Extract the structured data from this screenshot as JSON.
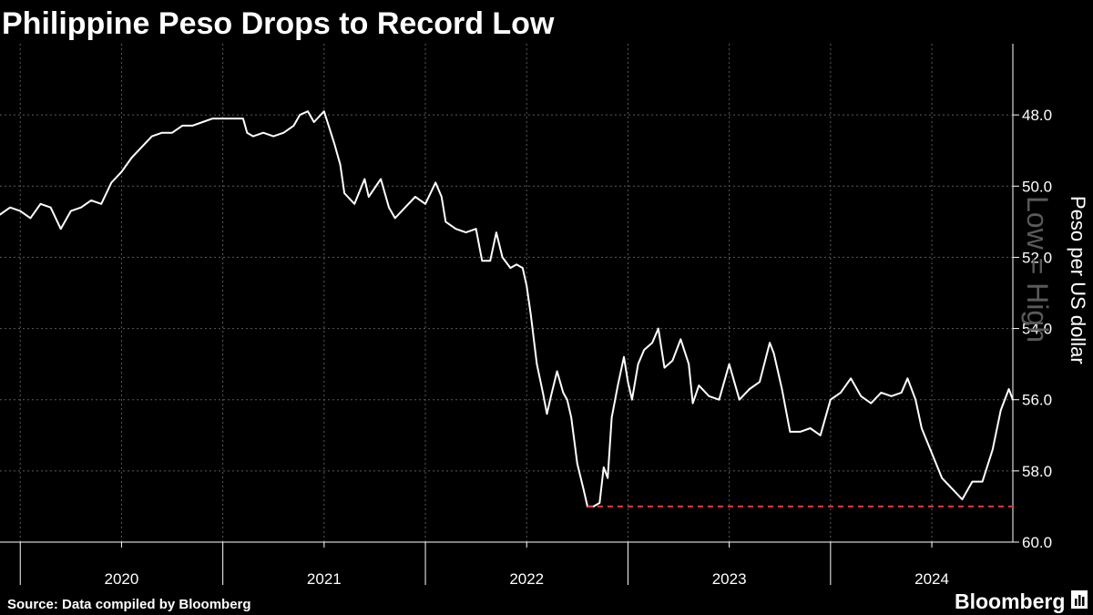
{
  "chart_data": {
    "type": "line",
    "title": "Philippine Peso Drops to Record Low",
    "ylabel": "Peso per US dollar",
    "ylabel_secondary": "Low = High",
    "ylim": [
      60.0,
      46.0
    ],
    "y_inverted": true,
    "yticks": [
      "48.0",
      "50.0",
      "52.0",
      "54.0",
      "56.0",
      "58.0",
      "60.0"
    ],
    "xlim": [
      2019.9,
      2024.9
    ],
    "xticks": [
      {
        "label": "2020",
        "value": 2020.5
      },
      {
        "label": "2021",
        "value": 2021.5
      },
      {
        "label": "2022",
        "value": 2022.5
      },
      {
        "label": "2023",
        "value": 2023.5
      },
      {
        "label": "2024",
        "value": 2024.5
      }
    ],
    "year_boundaries": [
      2020.0,
      2021.0,
      2022.0,
      2023.0,
      2024.0
    ],
    "grid_x": [
      2020.0,
      2020.5,
      2021.0,
      2021.5,
      2022.0,
      2022.5,
      2023.0,
      2023.5,
      2024.0,
      2024.5
    ],
    "series": [
      {
        "name": "Peso per US dollar",
        "color": "#ffffff",
        "points": [
          [
            2019.9,
            50.8
          ],
          [
            2019.95,
            50.6
          ],
          [
            2020.0,
            50.7
          ],
          [
            2020.05,
            50.9
          ],
          [
            2020.1,
            50.5
          ],
          [
            2020.15,
            50.6
          ],
          [
            2020.2,
            51.2
          ],
          [
            2020.25,
            50.7
          ],
          [
            2020.3,
            50.6
          ],
          [
            2020.35,
            50.4
          ],
          [
            2020.4,
            50.5
          ],
          [
            2020.45,
            49.9
          ],
          [
            2020.5,
            49.6
          ],
          [
            2020.55,
            49.2
          ],
          [
            2020.6,
            48.9
          ],
          [
            2020.65,
            48.6
          ],
          [
            2020.7,
            48.5
          ],
          [
            2020.75,
            48.5
          ],
          [
            2020.8,
            48.3
          ],
          [
            2020.85,
            48.3
          ],
          [
            2020.9,
            48.2
          ],
          [
            2020.95,
            48.1
          ],
          [
            2021.0,
            48.1
          ],
          [
            2021.05,
            48.1
          ],
          [
            2021.1,
            48.1
          ],
          [
            2021.12,
            48.5
          ],
          [
            2021.15,
            48.6
          ],
          [
            2021.2,
            48.5
          ],
          [
            2021.25,
            48.6
          ],
          [
            2021.3,
            48.5
          ],
          [
            2021.35,
            48.3
          ],
          [
            2021.38,
            48.0
          ],
          [
            2021.42,
            47.9
          ],
          [
            2021.45,
            48.2
          ],
          [
            2021.5,
            47.9
          ],
          [
            2021.55,
            48.8
          ],
          [
            2021.58,
            49.4
          ],
          [
            2021.6,
            50.2
          ],
          [
            2021.65,
            50.5
          ],
          [
            2021.7,
            49.8
          ],
          [
            2021.72,
            50.3
          ],
          [
            2021.78,
            49.8
          ],
          [
            2021.82,
            50.6
          ],
          [
            2021.85,
            50.9
          ],
          [
            2021.9,
            50.6
          ],
          [
            2021.95,
            50.3
          ],
          [
            2022.0,
            50.5
          ],
          [
            2022.05,
            49.9
          ],
          [
            2022.08,
            50.3
          ],
          [
            2022.1,
            51.0
          ],
          [
            2022.15,
            51.2
          ],
          [
            2022.2,
            51.3
          ],
          [
            2022.25,
            51.2
          ],
          [
            2022.28,
            52.1
          ],
          [
            2022.32,
            52.1
          ],
          [
            2022.35,
            51.3
          ],
          [
            2022.38,
            52.0
          ],
          [
            2022.42,
            52.3
          ],
          [
            2022.45,
            52.2
          ],
          [
            2022.48,
            52.3
          ],
          [
            2022.5,
            52.8
          ],
          [
            2022.52,
            53.6
          ],
          [
            2022.55,
            55.0
          ],
          [
            2022.58,
            55.8
          ],
          [
            2022.6,
            56.4
          ],
          [
            2022.62,
            55.9
          ],
          [
            2022.65,
            55.2
          ],
          [
            2022.68,
            55.8
          ],
          [
            2022.7,
            56.0
          ],
          [
            2022.72,
            56.5
          ],
          [
            2022.75,
            57.8
          ],
          [
            2022.78,
            58.5
          ],
          [
            2022.8,
            59.0
          ],
          [
            2022.83,
            59.0
          ],
          [
            2022.86,
            58.9
          ],
          [
            2022.88,
            57.9
          ],
          [
            2022.9,
            58.2
          ],
          [
            2022.92,
            56.5
          ],
          [
            2022.95,
            55.6
          ],
          [
            2022.98,
            54.8
          ],
          [
            2023.0,
            55.5
          ],
          [
            2023.02,
            56.0
          ],
          [
            2023.05,
            55.0
          ],
          [
            2023.08,
            54.6
          ],
          [
            2023.12,
            54.4
          ],
          [
            2023.15,
            54.0
          ],
          [
            2023.18,
            55.1
          ],
          [
            2023.22,
            54.9
          ],
          [
            2023.26,
            54.3
          ],
          [
            2023.3,
            55.0
          ],
          [
            2023.32,
            56.1
          ],
          [
            2023.35,
            55.6
          ],
          [
            2023.4,
            55.9
          ],
          [
            2023.45,
            56.0
          ],
          [
            2023.5,
            55.0
          ],
          [
            2023.55,
            56.0
          ],
          [
            2023.6,
            55.7
          ],
          [
            2023.65,
            55.5
          ],
          [
            2023.7,
            54.4
          ],
          [
            2023.72,
            54.7
          ],
          [
            2023.76,
            55.7
          ],
          [
            2023.8,
            56.9
          ],
          [
            2023.85,
            56.9
          ],
          [
            2023.9,
            56.8
          ],
          [
            2023.95,
            57.0
          ],
          [
            2024.0,
            56.0
          ],
          [
            2024.05,
            55.8
          ],
          [
            2024.1,
            55.4
          ],
          [
            2024.15,
            55.9
          ],
          [
            2024.2,
            56.1
          ],
          [
            2024.25,
            55.8
          ],
          [
            2024.3,
            55.9
          ],
          [
            2024.35,
            55.8
          ],
          [
            2024.38,
            55.4
          ],
          [
            2024.42,
            56.0
          ],
          [
            2024.45,
            56.8
          ],
          [
            2024.5,
            57.5
          ],
          [
            2024.55,
            58.2
          ],
          [
            2024.6,
            58.5
          ],
          [
            2024.65,
            58.8
          ],
          [
            2024.7,
            58.3
          ],
          [
            2024.75,
            58.3
          ],
          [
            2024.8,
            57.4
          ],
          [
            2024.84,
            56.3
          ],
          [
            2024.88,
            55.7
          ],
          [
            2024.9,
            56.0
          ]
        ]
      }
    ],
    "reference_line": {
      "value": 59.0,
      "x_start": 2022.8,
      "x_end": 2024.9,
      "color": "#e0383e",
      "style": "dashed"
    }
  },
  "footer": {
    "source": "Source: Data compiled by Bloomberg",
    "brand": "Bloomberg"
  }
}
